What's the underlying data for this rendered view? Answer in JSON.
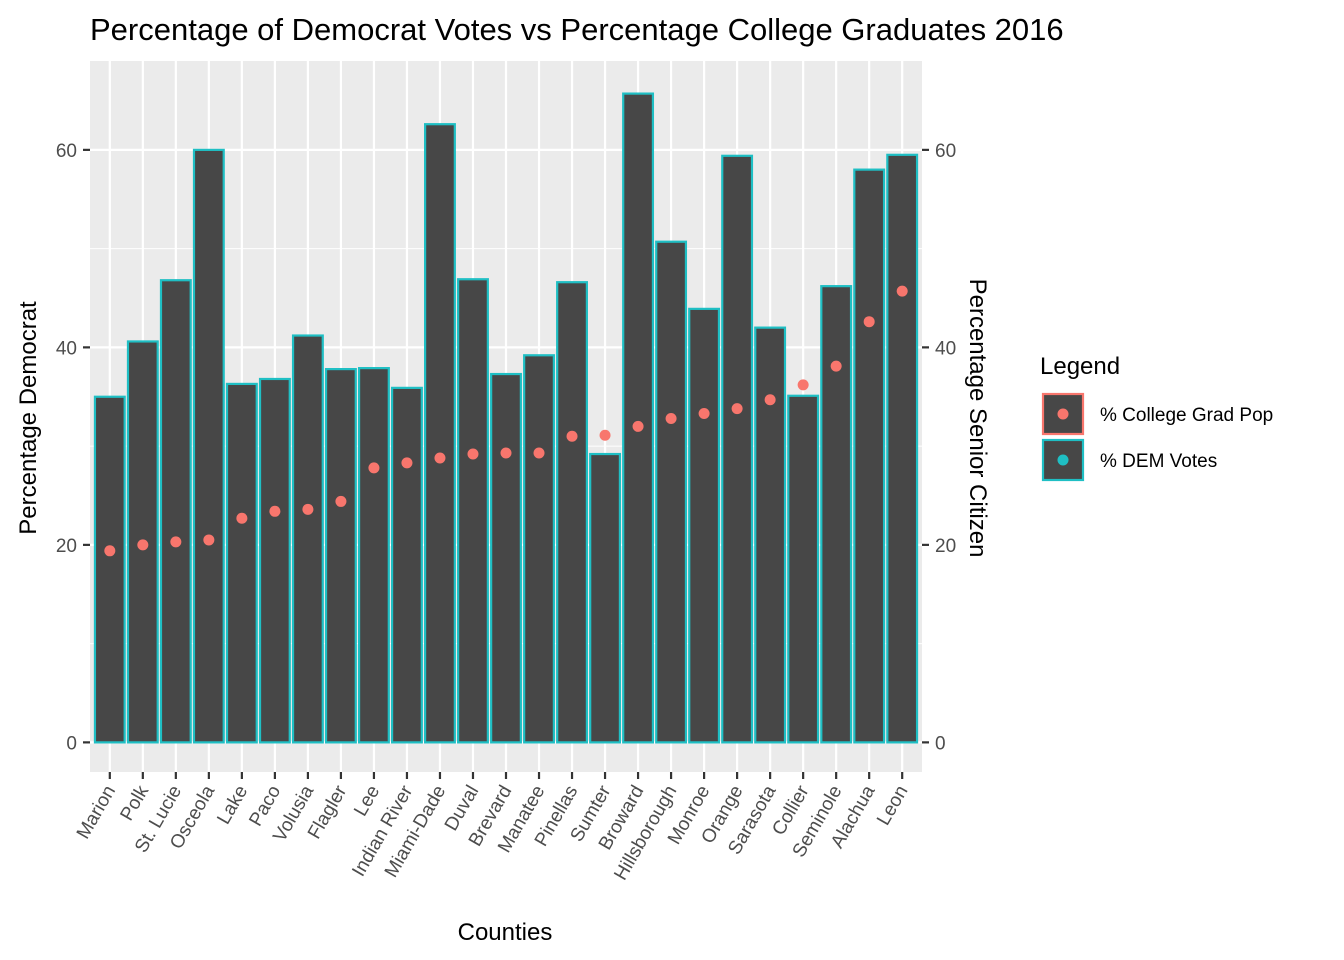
{
  "chart_data": {
    "type": "bar",
    "title": "Percentage of Democrat Votes vs Percentage College Graduates 2016",
    "xlabel": "Counties",
    "ylabel": "Percentage Democrat",
    "y2label": "Percentage Senior Citizen",
    "ylim": [
      -3,
      69
    ],
    "yticks": [
      0,
      20,
      40,
      60
    ],
    "y2ticks": [
      0,
      20,
      40,
      60
    ],
    "grid": true,
    "legend_position": "right",
    "categories": [
      "Marion",
      "Polk",
      "St. Lucie",
      "Osceola",
      "Lake",
      "Paco",
      "Volusia",
      "Flagler",
      "Lee",
      "Indian River",
      "Miami-Dade",
      "Duval",
      "Brevard",
      "Manatee",
      "Pinellas",
      "Sumter",
      "Broward",
      "Hillsborough",
      "Monroe",
      "Orange",
      "Sarasota",
      "Collier",
      "Seminole",
      "Alachua",
      "Leon"
    ],
    "series": [
      {
        "name": "% DEM Votes",
        "kind": "bar",
        "fill": "#474747",
        "outline": "#1fbfc4",
        "values": [
          35.0,
          40.6,
          46.8,
          60.0,
          36.3,
          36.8,
          41.2,
          37.8,
          37.9,
          35.9,
          62.6,
          46.9,
          37.3,
          39.2,
          46.6,
          29.2,
          65.7,
          50.7,
          43.9,
          59.4,
          42.0,
          35.1,
          46.2,
          58.0,
          59.5
        ]
      },
      {
        "name": "% College Grad Pop",
        "kind": "point",
        "color": "#f8766d",
        "values": [
          19.4,
          20.0,
          20.3,
          20.5,
          22.7,
          23.4,
          23.6,
          24.4,
          27.8,
          28.3,
          28.8,
          29.2,
          29.3,
          29.3,
          31.0,
          31.1,
          32.0,
          32.8,
          33.3,
          33.8,
          34.7,
          36.2,
          38.1,
          42.6,
          45.7
        ]
      }
    ]
  },
  "legend": {
    "title": "Legend",
    "items": [
      {
        "label": "% College Grad Pop",
        "outline": "#f8766d",
        "dot": "#f8766d"
      },
      {
        "label": "% DEM Votes",
        "outline": "#1fbfc4",
        "dot": "#1fbfc4"
      }
    ]
  },
  "colors": {
    "panel": "#ebebeb",
    "grid": "#ffffff",
    "tick": "#333333"
  }
}
